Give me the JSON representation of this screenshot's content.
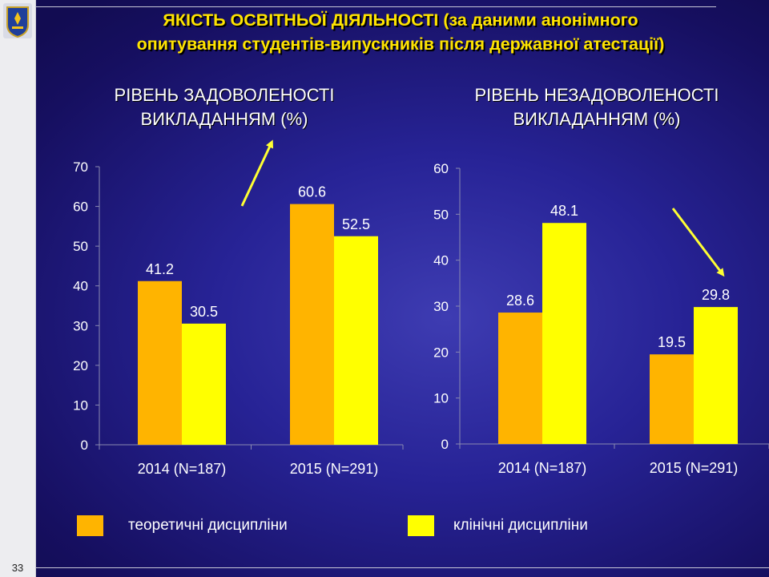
{
  "slide": {
    "title_line1": "ЯКІСТЬ ОСВІТНЬОЇ ДІЯЛЬНОСТІ (за даними анонімного",
    "title_line2": "опитування студентів-випускників після державної атестації)",
    "page_number": "33"
  },
  "colors": {
    "theoretical": "#ffb400",
    "clinical": "#ffff00",
    "title": "#ffe400",
    "arrow": "#ffff33"
  },
  "legend": {
    "theoretical": "теоретичні дисципліни",
    "clinical": "клінічні дисципліни"
  },
  "chart_data": [
    {
      "type": "bar",
      "title_line1": "РІВЕНЬ ЗАДОВОЛЕНОСТІ",
      "title_line2": "ВИКЛАДАННЯМ (%)",
      "categories": [
        "2014 (N=187)",
        "2015 (N=291)"
      ],
      "series": [
        {
          "name": "теоретичні дисципліни",
          "values": [
            41.2,
            60.6
          ]
        },
        {
          "name": "клінічні дисципліни",
          "values": [
            30.5,
            52.5
          ]
        }
      ],
      "ylim": [
        0,
        70
      ],
      "yticks": [
        0,
        10,
        20,
        30,
        40,
        50,
        60,
        70
      ],
      "trend_arrow": "up"
    },
    {
      "type": "bar",
      "title_line1": "РІВЕНЬ НЕЗАДОВОЛЕНОСТІ",
      "title_line2": "ВИКЛАДАННЯМ (%)",
      "categories": [
        "2014 (N=187)",
        "2015 (N=291)"
      ],
      "series": [
        {
          "name": "теоретичні дисципліни",
          "values": [
            28.6,
            19.5
          ]
        },
        {
          "name": "клінічні дисципліни",
          "values": [
            48.1,
            29.8
          ]
        }
      ],
      "ylim": [
        0,
        60
      ],
      "yticks": [
        0,
        10,
        20,
        30,
        40,
        50,
        60
      ],
      "trend_arrow": "down"
    }
  ]
}
